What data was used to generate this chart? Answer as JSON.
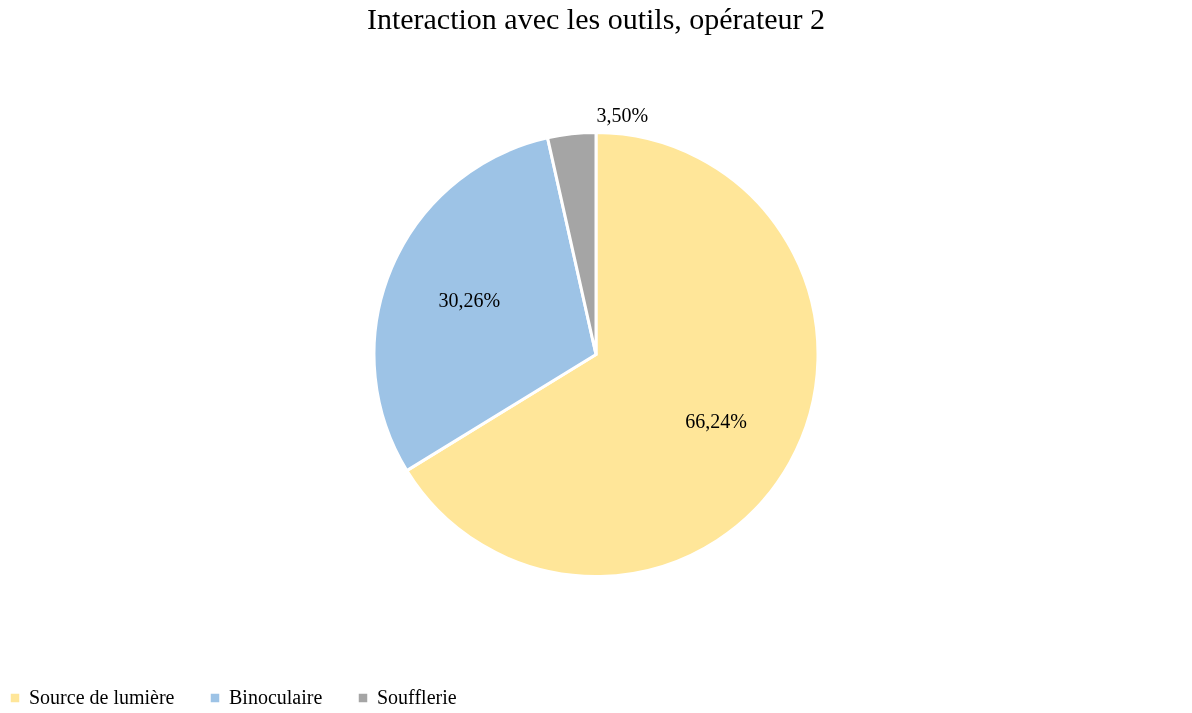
{
  "chart_data": {
    "type": "pie",
    "title": "Interaction avec les outils, opérateur 2",
    "categories": [
      "Source de lumière",
      "Binoculaire",
      "Soufflerie"
    ],
    "values": [
      66.24,
      30.26,
      3.5
    ],
    "colors": [
      "#ffe699",
      "#9dc3e6",
      "#a5a5a5"
    ],
    "value_labels": [
      "66,24%",
      "30,26%",
      "3,50%"
    ],
    "legend": "bottom"
  }
}
